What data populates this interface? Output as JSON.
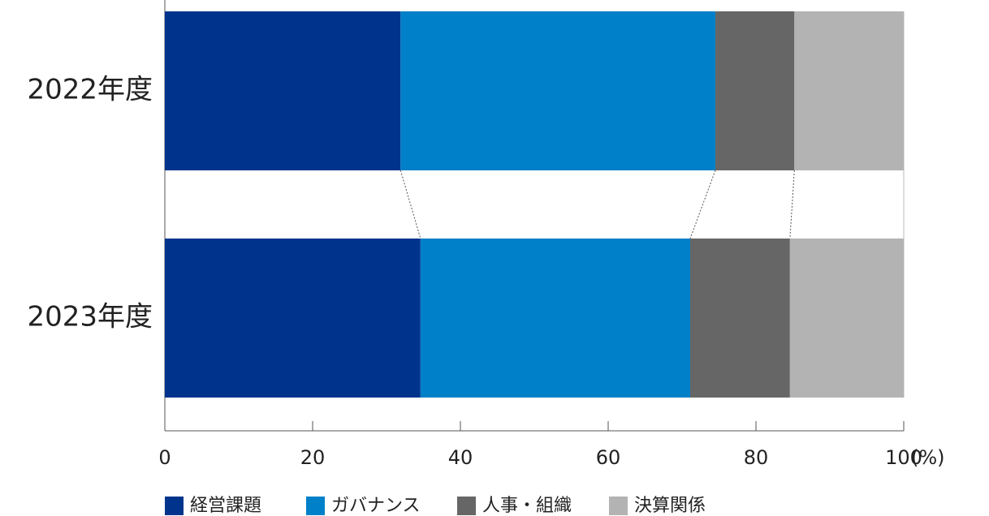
{
  "chart_data": {
    "type": "stacked-bar-horizontal",
    "categories": [
      "2022年度",
      "2023年度"
    ],
    "series": [
      {
        "name": "経営課題",
        "color": "#00348c",
        "values": [
          31.9,
          34.6
        ]
      },
      {
        "name": "ガバナンス",
        "color": "#0080c8",
        "values": [
          42.6,
          36.5
        ]
      },
      {
        "name": "人事・組織",
        "color": "#666666",
        "values": [
          10.7,
          13.5
        ]
      },
      {
        "name": "決算関係",
        "color": "#b3b3b3",
        "values": [
          14.8,
          15.4
        ]
      }
    ],
    "xlim": [
      0,
      100
    ],
    "xticks": [
      0,
      20,
      40,
      60,
      80,
      100
    ],
    "x_unit": "(%)"
  }
}
